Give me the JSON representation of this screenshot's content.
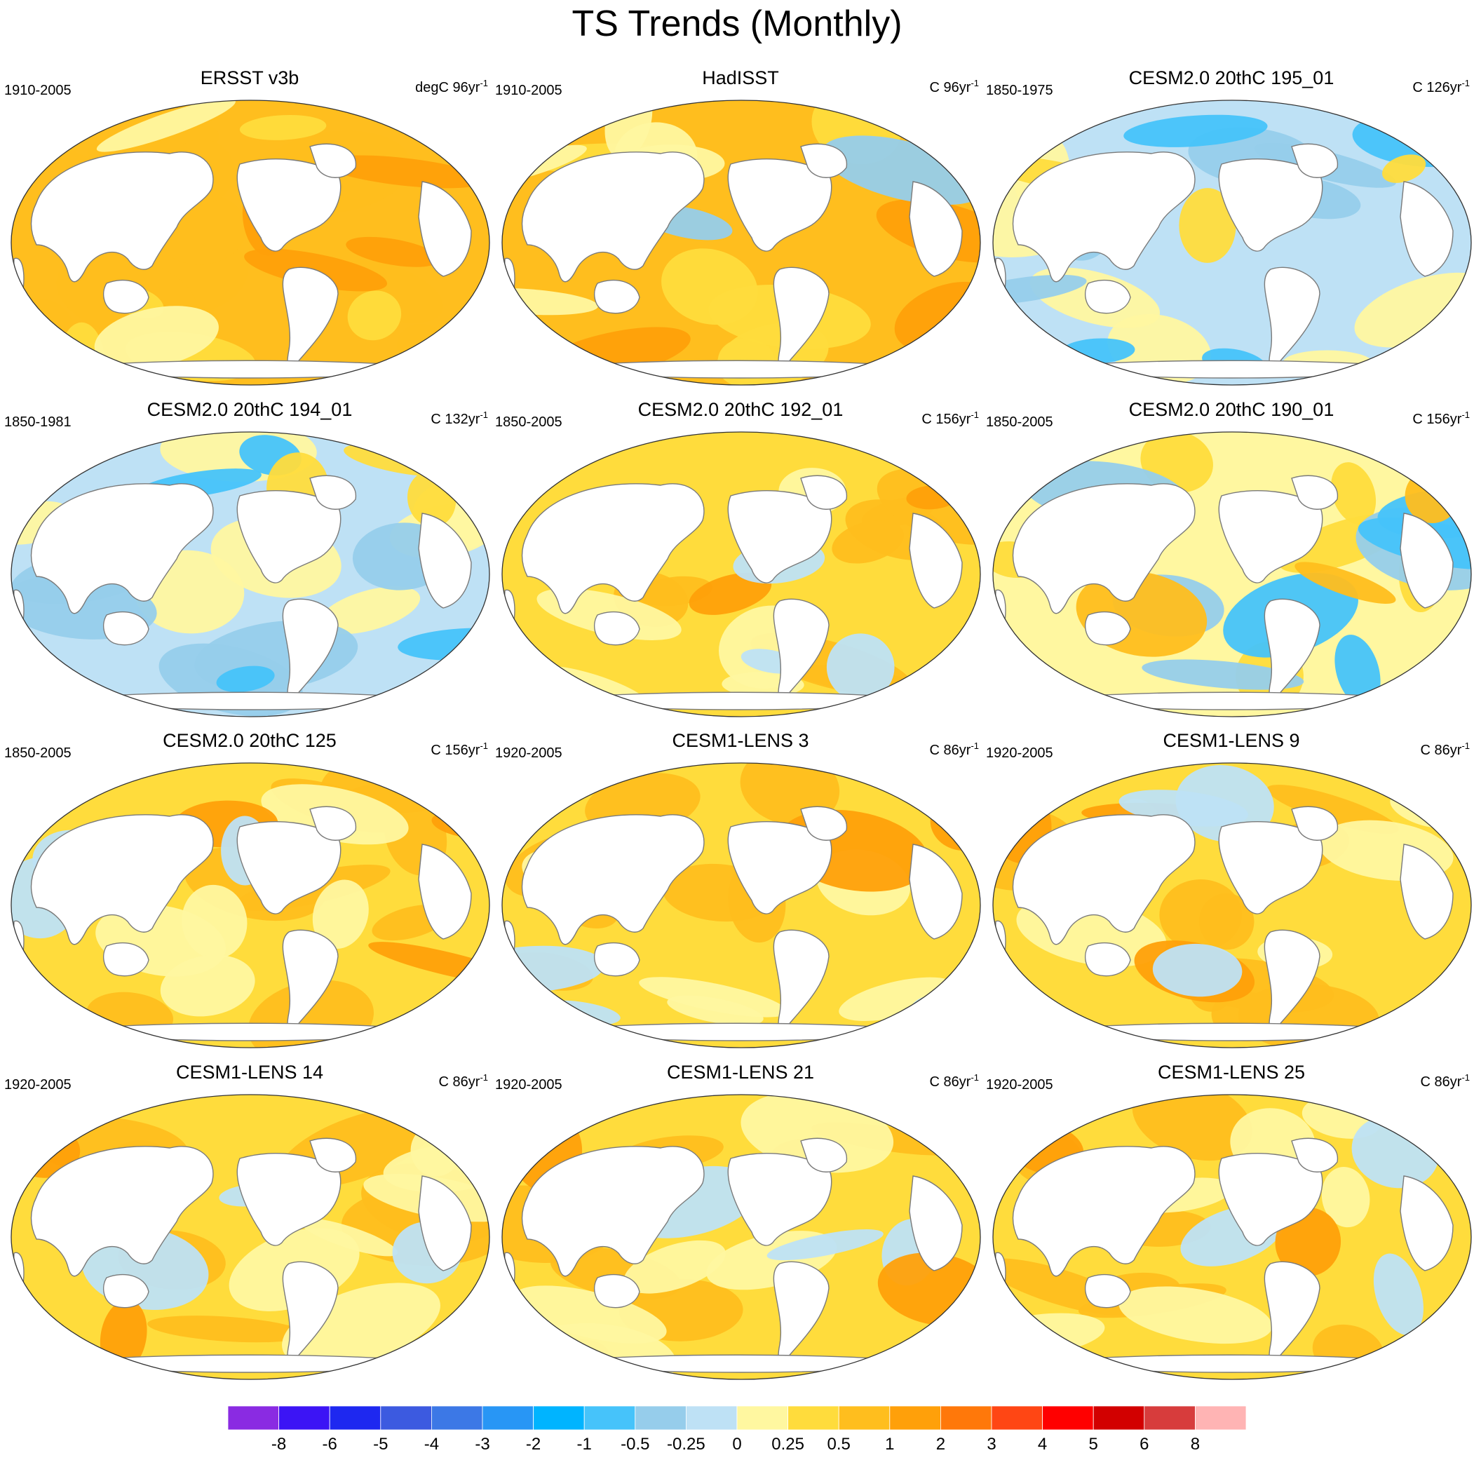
{
  "figure_title": "TS Trends (Monthly)",
  "panels": [
    {
      "title": "ERSST v3b",
      "period": "1910-2005",
      "units": "degC 96yr",
      "units_sup": "-1",
      "pattern": "obs1"
    },
    {
      "title": "HadISST",
      "period": "1910-2005",
      "units": "C 96yr",
      "units_sup": "-1",
      "pattern": "obs2"
    },
    {
      "title": "CESM2.0 20thC 195_01",
      "period": "1850-1975",
      "units": "C 126yr",
      "units_sup": "-1",
      "pattern": "cool"
    },
    {
      "title": "CESM2.0 20thC 194_01",
      "period": "1850-1981",
      "units": "C 132yr",
      "units_sup": "-1",
      "pattern": "cool"
    },
    {
      "title": "CESM2.0 20thC 192_01",
      "period": "1850-2005",
      "units": "C 156yr",
      "units_sup": "-1",
      "pattern": "warmA"
    },
    {
      "title": "CESM2.0 20thC 190_01",
      "period": "1850-2005",
      "units": "C 156yr",
      "units_sup": "-1",
      "pattern": "mixed"
    },
    {
      "title": "CESM2.0 20thC 125",
      "period": "1850-2005",
      "units": "C 156yr",
      "units_sup": "-1",
      "pattern": "warmA"
    },
    {
      "title": "CESM1-LENS 3",
      "period": "1920-2005",
      "units": "C 86yr",
      "units_sup": "-1",
      "pattern": "warmB"
    },
    {
      "title": "CESM1-LENS 9",
      "period": "1920-2005",
      "units": "C 86yr",
      "units_sup": "-1",
      "pattern": "warmA"
    },
    {
      "title": "CESM1-LENS 14",
      "period": "1920-2005",
      "units": "C 86yr",
      "units_sup": "-1",
      "pattern": "warmB"
    },
    {
      "title": "CESM1-LENS 21",
      "period": "1920-2005",
      "units": "C 86yr",
      "units_sup": "-1",
      "pattern": "warmB"
    },
    {
      "title": "CESM1-LENS 25",
      "period": "1920-2005",
      "units": "C 86yr",
      "units_sup": "-1",
      "pattern": "warmB"
    }
  ],
  "colorbar": {
    "colors": [
      "#8a2be2",
      "#3c14f5",
      "#1e28f0",
      "#3c5ae0",
      "#3c78e6",
      "#2896f5",
      "#00b4ff",
      "#46c3fa",
      "#96cdeb",
      "#bee1f5",
      "#fff7a0",
      "#ffdc3c",
      "#ffbe1e",
      "#ffa00a",
      "#ff780a",
      "#ff4614",
      "#ff0000",
      "#d20000",
      "#d73c3c",
      "#ffb4b4"
    ],
    "ticks": [
      "-8",
      "-6",
      "-5",
      "-4",
      "-3",
      "-2",
      "-1",
      "-0.5",
      "-0.25",
      "0",
      "0.25",
      "0.5",
      "1",
      "2",
      "3",
      "4",
      "5",
      "6",
      "8"
    ]
  },
  "map_colors": {
    "land": "#ffffff",
    "coast": "#7a7a7a",
    "border": "#333333"
  }
}
